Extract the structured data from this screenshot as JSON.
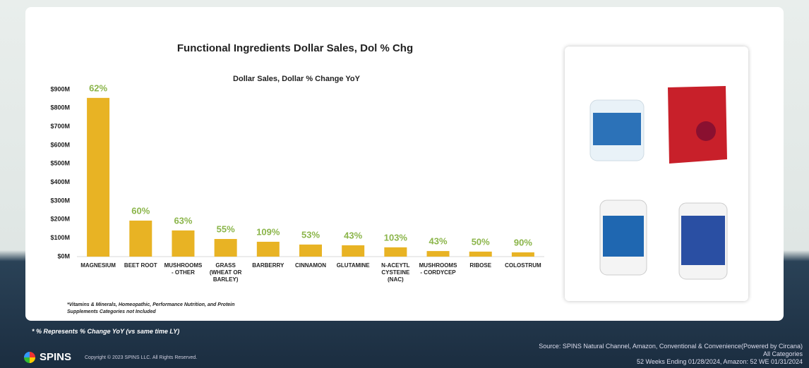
{
  "chart_data": {
    "type": "bar",
    "title": "Functional Ingredients Dollar Sales, Dol % Chg",
    "subtitle": "Dollar Sales, Dollar % Change YoY",
    "categories": [
      "MAGNESIUM",
      "BEET ROOT",
      "MUSHROOMS - OTHER",
      "GRASS (WHEAT OR BARLEY)",
      "BARBERRY",
      "CINNAMON",
      "GLUTAMINE",
      "N-ACEYTL CYSTEINE (NAC)",
      "MUSHROOMS - CORDYCEP",
      "RIBOSE",
      "COLOSTRUM"
    ],
    "values": [
      855,
      194,
      141,
      95,
      80,
      65,
      61,
      50,
      30,
      27,
      23
    ],
    "pct_change_labels": [
      "62%",
      "60%",
      "63%",
      "55%",
      "109%",
      "53%",
      "43%",
      "103%",
      "43%",
      "50%",
      "90%"
    ],
    "color": "#e8b324",
    "label_color": "#8bb54a",
    "ylim": [
      0,
      900
    ],
    "yticks": [
      {
        "value": 0,
        "label": "$0M"
      },
      {
        "value": 100,
        "label": "$100M"
      },
      {
        "value": 200,
        "label": "$200M"
      },
      {
        "value": 300,
        "label": "$300M"
      },
      {
        "value": 400,
        "label": "$400M"
      },
      {
        "value": 500,
        "label": "$500M"
      },
      {
        "value": 600,
        "label": "$600M"
      },
      {
        "value": 700,
        "label": "$700M"
      },
      {
        "value": 800,
        "label": "$800M"
      },
      {
        "value": 900,
        "label": "$900M"
      }
    ],
    "grid": false,
    "footnote": "*Vitamins & Minerals, Homeopathic, Performance Nutrition, and Protein Supplements Categories not Included"
  },
  "footer": {
    "note": "* % Represents % Change YoY (vs same time LY)",
    "brand": "SPINS",
    "copyright": "Copyright © 2023 SPINS LLC. All Rights Reserved.",
    "source_lines": [
      "Source: SPINS Natural Channel, Amazon, Conventional & Convenience(Powered by Circana)",
      "All Categories",
      "52 Weeks Ending 01/28/2024, Amazon: 52 WE 01/31/2024"
    ]
  }
}
